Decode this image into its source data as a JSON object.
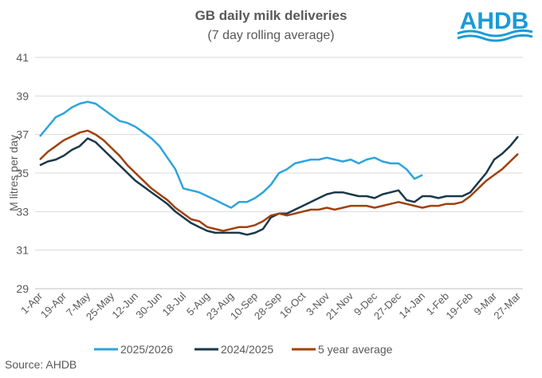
{
  "chart_data": {
    "type": "line",
    "title": "GB daily milk deliveries",
    "subtitle": "(7 day rolling average)",
    "y_label": "M litres per day",
    "source": "Source: AHDB",
    "logo": "AHDB",
    "categories": [
      "1-Apr",
      null,
      null,
      "19-Apr",
      null,
      null,
      "7-May",
      null,
      null,
      "25-May",
      null,
      null,
      "12-Jun",
      null,
      null,
      "30-Jun",
      null,
      null,
      "18-Jul",
      null,
      null,
      "5-Aug",
      null,
      null,
      "23-Aug",
      null,
      null,
      "10-Sep",
      null,
      null,
      "28-Sep",
      null,
      null,
      "16-Oct",
      null,
      null,
      "3-Nov",
      null,
      null,
      "21-Nov",
      null,
      null,
      "9-Dec",
      null,
      null,
      "27-Dec",
      null,
      null,
      "14-Jan",
      null,
      null,
      "1-Feb",
      null,
      null,
      "19-Feb",
      null,
      null,
      "9-Mar",
      null,
      null,
      "27-Mar"
    ],
    "ylim": [
      29,
      41
    ],
    "yticks": [
      29,
      31,
      33,
      35,
      37,
      39,
      41
    ],
    "grid": true,
    "series": [
      {
        "name": "2025/2026",
        "color": "#2ea3dc",
        "values": [
          36.9,
          37.4,
          37.9,
          38.1,
          38.4,
          38.6,
          38.7,
          38.6,
          38.3,
          38.0,
          37.7,
          37.6,
          37.4,
          37.1,
          36.8,
          36.4,
          35.8,
          35.2,
          34.2,
          34.1,
          34.0,
          33.8,
          33.6,
          33.4,
          33.2,
          33.5,
          33.5,
          33.7,
          34.0,
          34.4,
          35.0,
          35.2,
          35.5,
          35.6,
          35.7,
          35.7,
          35.8,
          35.7,
          35.6,
          35.7,
          35.5,
          35.7,
          35.8,
          35.6,
          35.5,
          35.5,
          35.2,
          34.7,
          34.9,
          null,
          null,
          null,
          null,
          null,
          null,
          null,
          null,
          null,
          null,
          null,
          null
        ]
      },
      {
        "name": "2024/2025",
        "color": "#1b3849",
        "values": [
          35.4,
          35.6,
          35.7,
          35.9,
          36.2,
          36.4,
          36.8,
          36.6,
          36.2,
          35.8,
          35.4,
          35.0,
          34.6,
          34.3,
          34.0,
          33.7,
          33.4,
          33.0,
          32.7,
          32.4,
          32.2,
          32.0,
          31.9,
          31.9,
          31.9,
          31.9,
          31.8,
          31.9,
          32.1,
          32.7,
          32.9,
          32.9,
          33.1,
          33.3,
          33.5,
          33.7,
          33.9,
          34.0,
          34.0,
          33.9,
          33.8,
          33.8,
          33.7,
          33.9,
          34.0,
          34.1,
          33.6,
          33.5,
          33.8,
          33.8,
          33.7,
          33.8,
          33.8,
          33.8,
          34.0,
          34.5,
          35.0,
          35.7,
          36.0,
          36.4,
          36.9
        ]
      },
      {
        "name": "5 year average",
        "color": "#a0410d",
        "values": [
          35.7,
          36.1,
          36.4,
          36.7,
          36.9,
          37.1,
          37.2,
          37.0,
          36.7,
          36.3,
          35.9,
          35.4,
          35.0,
          34.6,
          34.2,
          33.9,
          33.6,
          33.2,
          32.9,
          32.6,
          32.5,
          32.2,
          32.1,
          32.0,
          32.1,
          32.2,
          32.2,
          32.3,
          32.5,
          32.8,
          32.9,
          32.8,
          32.9,
          33.0,
          33.1,
          33.1,
          33.2,
          33.1,
          33.2,
          33.3,
          33.3,
          33.3,
          33.2,
          33.3,
          33.4,
          33.5,
          33.4,
          33.3,
          33.2,
          33.3,
          33.3,
          33.4,
          33.4,
          33.5,
          33.8,
          34.2,
          34.6,
          34.9,
          35.2,
          35.6,
          36.0
        ]
      }
    ]
  }
}
